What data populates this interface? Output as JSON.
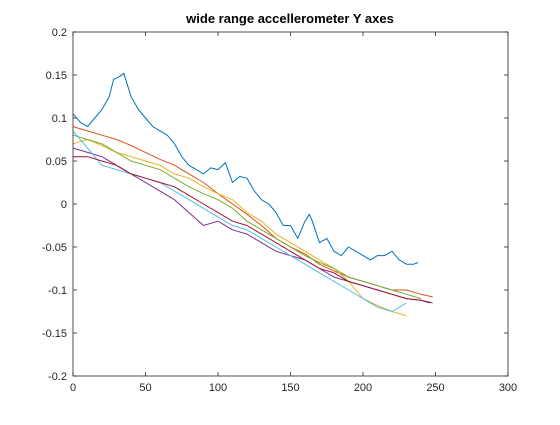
{
  "chart_data": {
    "type": "line",
    "title": "wide range accellerometer Y axes",
    "xlabel": "",
    "ylabel": "",
    "xlim": [
      0,
      300
    ],
    "ylim": [
      -0.2,
      0.2
    ],
    "grid": false,
    "legend": "none",
    "xticks": [
      0,
      50,
      100,
      150,
      200,
      250,
      300
    ],
    "xtick_labels": [
      "0",
      "50",
      "100",
      "150",
      "200",
      "250",
      "300"
    ],
    "yticks": [
      0.2,
      0.15,
      0.1,
      0.05,
      0,
      -0.05,
      -0.1,
      -0.15,
      -0.2
    ],
    "ytick_labels": [
      "0.2",
      "0.15",
      "0.1",
      "0.05",
      "0",
      "-0.05",
      "-0.1",
      "-0.15",
      "-0.2"
    ],
    "series": [
      {
        "color": "#0072BD",
        "x": [
          0,
          5,
          10,
          15,
          20,
          25,
          28,
          32,
          35,
          40,
          45,
          50,
          55,
          60,
          65,
          70,
          75,
          80,
          85,
          90,
          95,
          100,
          105,
          110,
          115,
          120,
          125,
          130,
          135,
          140,
          145,
          150,
          155,
          160,
          163,
          165,
          170,
          175,
          180,
          185,
          190,
          195,
          200,
          205,
          210,
          215,
          220,
          225,
          230,
          235,
          238
        ],
        "y": [
          0.105,
          0.095,
          0.09,
          0.1,
          0.11,
          0.125,
          0.145,
          0.148,
          0.152,
          0.125,
          0.11,
          0.1,
          0.09,
          0.085,
          0.08,
          0.07,
          0.055,
          0.045,
          0.04,
          0.035,
          0.042,
          0.04,
          0.048,
          0.025,
          0.032,
          0.03,
          0.015,
          0.005,
          0.0,
          -0.01,
          -0.025,
          -0.025,
          -0.04,
          -0.02,
          -0.012,
          -0.02,
          -0.045,
          -0.04,
          -0.055,
          -0.06,
          -0.05,
          -0.055,
          -0.06,
          -0.065,
          -0.06,
          -0.06,
          -0.055,
          -0.065,
          -0.07,
          -0.07,
          -0.068
        ]
      },
      {
        "color": "#D95319",
        "x": [
          0,
          10,
          20,
          30,
          40,
          50,
          60,
          70,
          80,
          90,
          100,
          110,
          120,
          130,
          140,
          150,
          160,
          170,
          180,
          190,
          200,
          210,
          220,
          230,
          240,
          248
        ],
        "y": [
          0.09,
          0.085,
          0.08,
          0.075,
          0.068,
          0.06,
          0.052,
          0.045,
          0.035,
          0.025,
          0.012,
          0.0,
          -0.012,
          -0.025,
          -0.04,
          -0.05,
          -0.058,
          -0.07,
          -0.078,
          -0.085,
          -0.09,
          -0.095,
          -0.1,
          -0.1,
          -0.105,
          -0.108
        ]
      },
      {
        "color": "#EDB120",
        "x": [
          0,
          10,
          20,
          30,
          40,
          50,
          60,
          70,
          80,
          90,
          100,
          110,
          120,
          130,
          140,
          150,
          160,
          170,
          180,
          190,
          200,
          210,
          220,
          230
        ],
        "y": [
          0.07,
          0.075,
          0.068,
          0.06,
          0.055,
          0.05,
          0.045,
          0.035,
          0.03,
          0.02,
          0.012,
          0.005,
          -0.01,
          -0.02,
          -0.035,
          -0.045,
          -0.055,
          -0.065,
          -0.075,
          -0.09,
          -0.11,
          -0.118,
          -0.125,
          -0.13
        ]
      },
      {
        "color": "#7E2F8E",
        "x": [
          0,
          10,
          20,
          30,
          40,
          50,
          60,
          70,
          80,
          90,
          100,
          110,
          120,
          130,
          140,
          150,
          160,
          170,
          180,
          190,
          200,
          210,
          220,
          230,
          240,
          248
        ],
        "y": [
          0.065,
          0.06,
          0.055,
          0.045,
          0.035,
          0.025,
          0.015,
          0.005,
          -0.01,
          -0.025,
          -0.02,
          -0.03,
          -0.035,
          -0.045,
          -0.055,
          -0.06,
          -0.065,
          -0.075,
          -0.085,
          -0.09,
          -0.095,
          -0.1,
          -0.105,
          -0.11,
          -0.112,
          -0.115
        ]
      },
      {
        "color": "#77AC30",
        "x": [
          0,
          10,
          20,
          30,
          40,
          50,
          60,
          70,
          80,
          90,
          100,
          110,
          120,
          130,
          140,
          150,
          160,
          170,
          180,
          190,
          200,
          210,
          220,
          230,
          240
        ],
        "y": [
          0.08,
          0.075,
          0.07,
          0.06,
          0.05,
          0.045,
          0.04,
          0.03,
          0.02,
          0.012,
          0.005,
          -0.005,
          -0.02,
          -0.03,
          -0.04,
          -0.05,
          -0.06,
          -0.068,
          -0.075,
          -0.085,
          -0.09,
          -0.095,
          -0.1,
          -0.105,
          -0.11
        ]
      },
      {
        "color": "#4DBEEE",
        "x": [
          0,
          10,
          20,
          30,
          40,
          50,
          60,
          70,
          80,
          90,
          100,
          110,
          120,
          130,
          140,
          150,
          160,
          170,
          180,
          190,
          200,
          210,
          220,
          230
        ],
        "y": [
          0.085,
          0.065,
          0.045,
          0.04,
          0.035,
          0.03,
          0.025,
          0.015,
          0.005,
          -0.005,
          -0.015,
          -0.025,
          -0.03,
          -0.04,
          -0.05,
          -0.06,
          -0.07,
          -0.08,
          -0.09,
          -0.1,
          -0.11,
          -0.12,
          -0.125,
          -0.115
        ]
      },
      {
        "color": "#A2142F",
        "x": [
          0,
          10,
          20,
          30,
          40,
          50,
          60,
          70,
          80,
          90,
          100,
          110,
          120,
          130,
          140,
          150,
          160,
          170,
          180,
          190,
          200,
          210,
          220,
          230,
          240,
          246
        ],
        "y": [
          0.055,
          0.055,
          0.05,
          0.045,
          0.035,
          0.03,
          0.025,
          0.02,
          0.01,
          0.0,
          -0.01,
          -0.02,
          -0.025,
          -0.035,
          -0.045,
          -0.055,
          -0.065,
          -0.075,
          -0.08,
          -0.09,
          -0.095,
          -0.1,
          -0.105,
          -0.11,
          -0.112,
          -0.115
        ]
      }
    ]
  }
}
